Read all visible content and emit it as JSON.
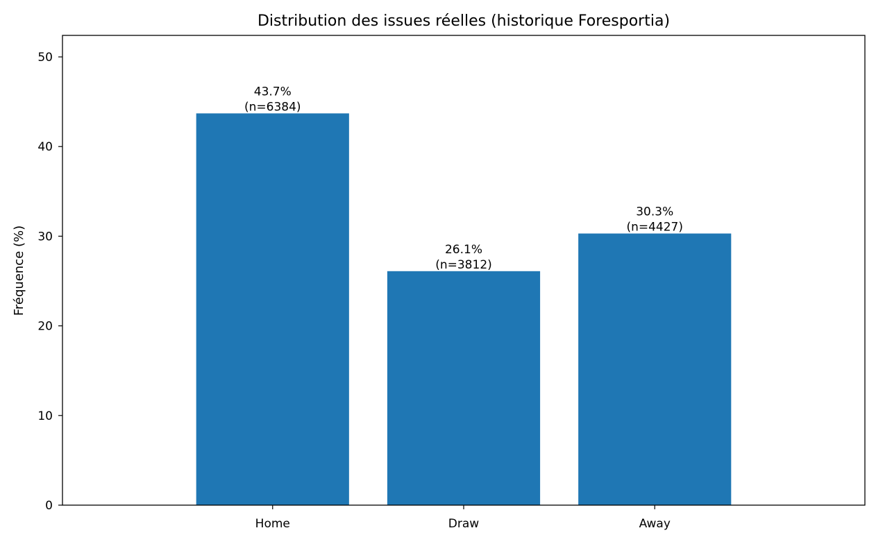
{
  "chart_data": {
    "type": "bar",
    "title": "Distribution des issues réelles (historique Foresportia)",
    "xlabel": "",
    "ylabel": "Fréquence (%)",
    "categories": [
      "Home",
      "Draw",
      "Away"
    ],
    "values": [
      43.7,
      26.1,
      30.3
    ],
    "counts": [
      6384,
      3812,
      4427
    ],
    "bar_labels": [
      [
        "43.7%",
        "(n=6384)"
      ],
      [
        "26.1%",
        "(n=3812)"
      ],
      [
        "30.3%",
        "(n=4427)"
      ]
    ],
    "ylim": [
      0,
      52.4
    ],
    "yticks": [
      0,
      10,
      20,
      30,
      40,
      50
    ],
    "ytick_labels": [
      "0",
      "10",
      "20",
      "30",
      "40",
      "50"
    ],
    "grid": false,
    "legend": "none",
    "colors": {
      "bar": "#1f77b4",
      "axis": "#000000",
      "background": "#ffffff"
    }
  }
}
